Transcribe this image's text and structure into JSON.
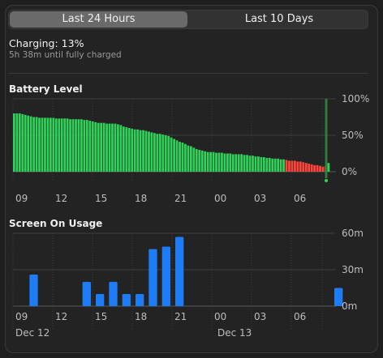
{
  "tabs": [
    {
      "label": "Last 24 Hours",
      "selected": true
    },
    {
      "label": "Last 10 Days",
      "selected": false
    }
  ],
  "charging": {
    "title": "Charging: 13%",
    "subtitle": "5h 38m until fully charged"
  },
  "battery": {
    "title": "Battery Level",
    "y_labels": [
      "100%",
      "50%",
      "0%"
    ],
    "colors": {
      "normal": "#30d158",
      "low": "#ff453a",
      "charging_line": "#2f7a3f"
    }
  },
  "screen": {
    "title": "Screen On Usage",
    "y_labels": [
      "60m",
      "30m",
      "0m"
    ],
    "color": "#1e7cf6"
  },
  "x_ticks": [
    "09",
    "12",
    "15",
    "18",
    "21",
    "00",
    "03",
    "06"
  ],
  "date_labels": [
    "Dec 12",
    "Dec 13"
  ],
  "chart_data": [
    {
      "type": "bar",
      "title": "Battery Level",
      "ylim": [
        0,
        100
      ],
      "y_unit": "%",
      "x_ticks": [
        "09",
        "12",
        "15",
        "18",
        "21",
        "00",
        "03",
        "06"
      ],
      "values": [
        80,
        80,
        80,
        79,
        78,
        77,
        76,
        75,
        75,
        74,
        74,
        74,
        74,
        74,
        74,
        73,
        73,
        73,
        73,
        73,
        72,
        72,
        72,
        72,
        72,
        71,
        71,
        70,
        69,
        68,
        67,
        67,
        67,
        66,
        66,
        66,
        66,
        65,
        64,
        62,
        61,
        60,
        59,
        58,
        58,
        57,
        57,
        56,
        55,
        54,
        53,
        52,
        52,
        51,
        50,
        49,
        47,
        45,
        43,
        41,
        40,
        38,
        36,
        35,
        33,
        31,
        30,
        29,
        28,
        27,
        27,
        27,
        26,
        26,
        26,
        25,
        25,
        25,
        24,
        24,
        24,
        24,
        23,
        23,
        22,
        22,
        21,
        21,
        20,
        20,
        19,
        19,
        18,
        18,
        18,
        17,
        17,
        16,
        15,
        15,
        15,
        14,
        14,
        13,
        12,
        11,
        10,
        9,
        9,
        8,
        7,
        8,
        12
      ],
      "low_from_index": 97,
      "charging_marker": true
    },
    {
      "type": "bar",
      "title": "Screen On Usage",
      "ylim": [
        0,
        60
      ],
      "y_unit": "m",
      "x_ticks": [
        "09",
        "12",
        "15",
        "18",
        "21",
        "00",
        "03",
        "06"
      ],
      "hours": [
        "08",
        "09",
        "10",
        "11",
        "12",
        "13",
        "14",
        "15",
        "16",
        "17",
        "18",
        "19",
        "20",
        "21",
        "22",
        "23",
        "00",
        "01",
        "02",
        "03",
        "04",
        "05",
        "06",
        "07",
        "08"
      ],
      "values": [
        0,
        26,
        0,
        0,
        0,
        20,
        10,
        20,
        10,
        10,
        47,
        49,
        57,
        0,
        0,
        0,
        0,
        0,
        0,
        0,
        0,
        0,
        0,
        0,
        15
      ],
      "date_labels": [
        "Dec 12",
        "Dec 13"
      ]
    }
  ]
}
